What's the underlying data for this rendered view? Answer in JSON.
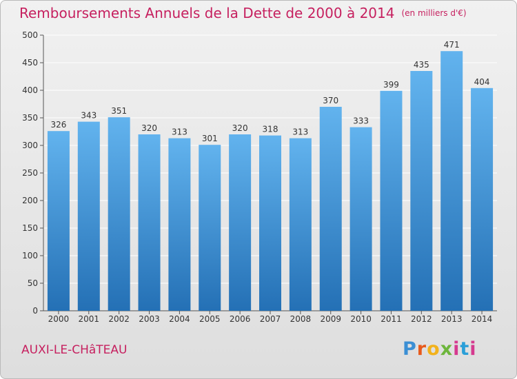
{
  "title": "Remboursements Annuels de la Dette de 2000 à 2014",
  "subtitle": "(en milliers d'€)",
  "commune": "AUXI-LE-CHâTEAU",
  "logo": {
    "p": "P",
    "r": "r",
    "o": "o",
    "x": "x",
    "i1": "i",
    "t": "t",
    "i2": "i"
  },
  "colors": {
    "accent": "#c6205f",
    "bar_top": "#62b3ee",
    "bar_bottom": "#2470b5",
    "grid": "#ffffff"
  },
  "chart_data": {
    "type": "bar",
    "title": "Remboursements Annuels de la Dette de 2000 à 2014",
    "xlabel": "",
    "ylabel": "",
    "categories": [
      "2000",
      "2001",
      "2002",
      "2003",
      "2004",
      "2005",
      "2006",
      "2007",
      "2008",
      "2009",
      "2010",
      "2011",
      "2012",
      "2013",
      "2014"
    ],
    "values": [
      326,
      343,
      351,
      320,
      313,
      301,
      320,
      318,
      313,
      370,
      333,
      399,
      435,
      471,
      404
    ],
    "ylim": [
      0,
      500
    ],
    "yticks": [
      0,
      50,
      100,
      150,
      200,
      250,
      300,
      350,
      400,
      450,
      500
    ],
    "grid": true
  }
}
